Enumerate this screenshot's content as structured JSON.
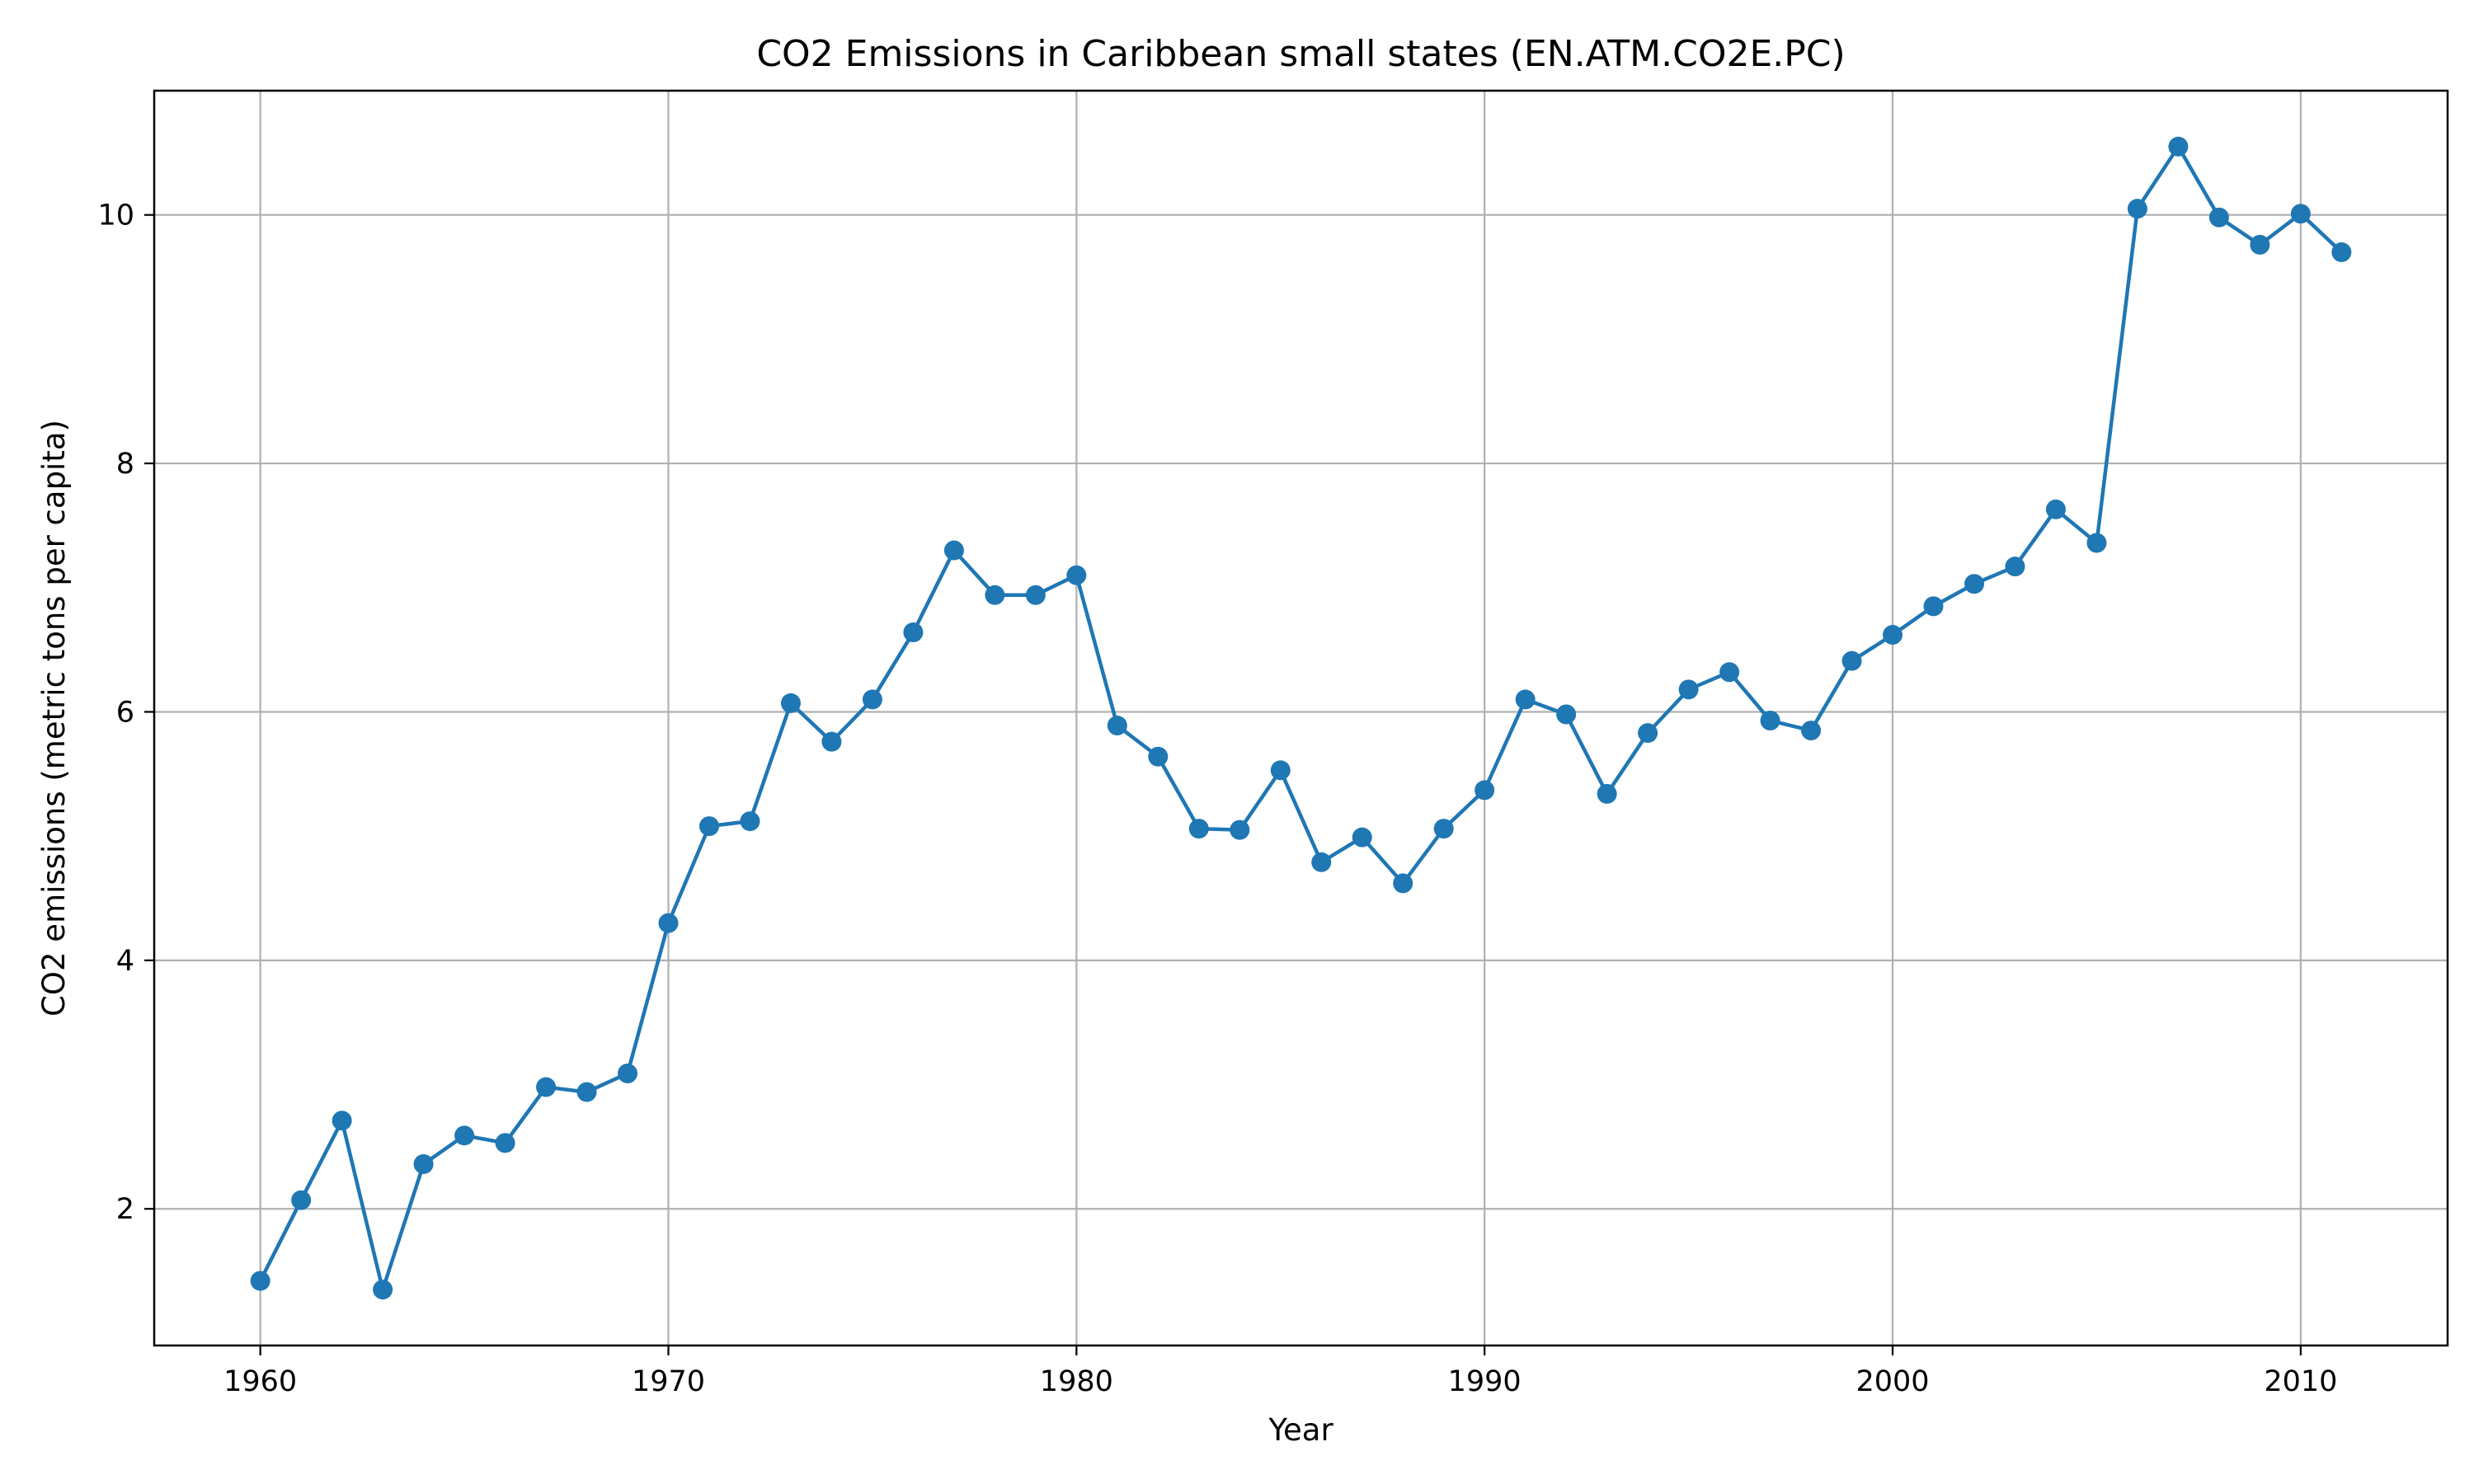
{
  "chart_data": {
    "type": "line",
    "title": "CO2 Emissions in Caribbean small states (EN.ATM.CO2E.PC)",
    "xlabel": "Year",
    "ylabel": "CO2 emissions (metric tons per capita)",
    "xlim": [
      1957.4,
      2013.6
    ],
    "ylim": [
      0.9,
      11.0
    ],
    "xticks": [
      1960,
      1970,
      1980,
      1990,
      2000,
      2010
    ],
    "yticks": [
      2,
      4,
      6,
      8,
      10
    ],
    "grid": true,
    "marker": "circle",
    "series": [
      {
        "color": "#1f77b4",
        "x": [
          1960,
          1961,
          1962,
          1963,
          1964,
          1965,
          1966,
          1967,
          1968,
          1969,
          1970,
          1971,
          1972,
          1973,
          1974,
          1975,
          1976,
          1977,
          1978,
          1979,
          1980,
          1981,
          1982,
          1983,
          1984,
          1985,
          1986,
          1987,
          1988,
          1989,
          1990,
          1991,
          1992,
          1993,
          1994,
          1995,
          1996,
          1997,
          1998,
          1999,
          2000,
          2001,
          2002,
          2003,
          2004,
          2005,
          2006,
          2007,
          2008,
          2009,
          2010,
          2011
        ],
        "y": [
          1.42,
          2.07,
          2.71,
          1.35,
          2.36,
          2.59,
          2.53,
          2.98,
          2.94,
          3.09,
          4.3,
          5.08,
          5.12,
          6.07,
          5.76,
          6.1,
          6.64,
          7.3,
          6.94,
          6.94,
          7.1,
          5.89,
          5.64,
          5.06,
          5.05,
          5.53,
          4.79,
          4.99,
          4.62,
          5.06,
          5.37,
          6.1,
          5.98,
          5.34,
          5.83,
          6.18,
          6.32,
          5.93,
          5.85,
          6.41,
          6.62,
          6.85,
          7.03,
          7.17,
          7.63,
          7.36,
          10.05,
          10.55,
          9.98,
          9.76,
          10.01,
          9.7
        ]
      }
    ]
  }
}
